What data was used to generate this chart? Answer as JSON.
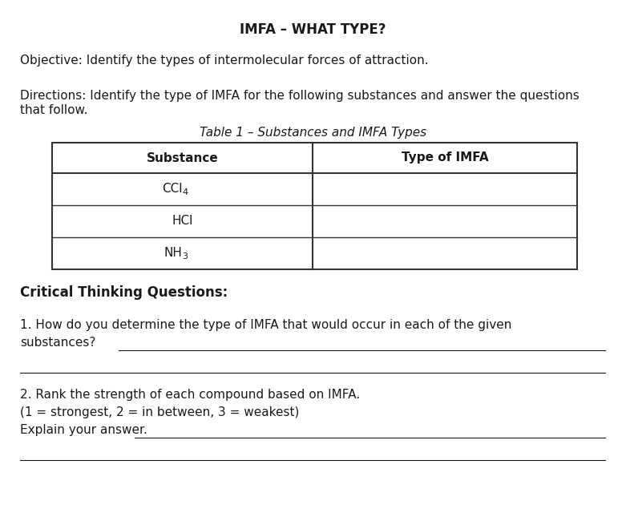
{
  "title": "IMFA – WHAT TYPE?",
  "objective": "Objective: Identify the types of intermolecular forces of attraction.",
  "directions_line1": "Directions: Identify the type of IMFA for the following substances and answer the questions",
  "directions_line2": "that follow.",
  "table_title": "Table 1 – Substances and IMFA Types",
  "col_headers": [
    "Substance",
    "Type of IMFA"
  ],
  "critical_heading": "Critical Thinking Questions:",
  "q1_line1": "1. How do you determine the type of IMFA that would occur in each of the given",
  "q1_line2": "substances?",
  "q2_line1": "2. Rank the strength of each compound based on IMFA.",
  "q2_line2": "(1 = strongest, 2 = in between, 3 = weakest)",
  "q2_line3": "Explain your answer.",
  "bg_color": "#ffffff",
  "text_color": "#1a1a1a",
  "table_border_color": "#333333",
  "font_size_title": 12,
  "font_size_body": 11,
  "font_size_table": 11,
  "font_size_subscript": 8
}
